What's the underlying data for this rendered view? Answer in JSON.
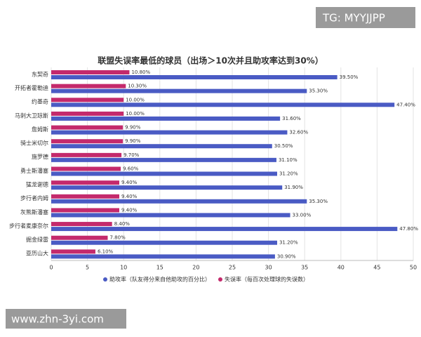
{
  "chart_data": {
    "type": "bar",
    "orientation": "horizontal",
    "title": "联盟失误率最低的球员（出场＞10次并且助攻率达到30%）",
    "categories": [
      "东契奇",
      "开拓者霍勒迪",
      "约基奇",
      "马刺大卫琼斯",
      "詹姆斯",
      "骑士米切尔",
      "施罗德",
      "勇士斯潘塞",
      "猛龙谢德",
      "步行者内姆",
      "灰熊斯潘塞",
      "步行者麦康奈尔",
      "掘金绿雷",
      "亚历山大"
    ],
    "series": [
      {
        "name": "助攻率（队友得分来自他助攻的百分比）",
        "color": "#4a5bc4",
        "values": [
          39.5,
          35.3,
          47.4,
          31.6,
          32.6,
          30.5,
          31.1,
          31.2,
          31.9,
          35.3,
          33.0,
          47.8,
          31.2,
          30.9
        ],
        "value_labels": [
          "39.50%",
          "35.30%",
          "47.40%",
          "31.60%",
          "32.60%",
          "30.50%",
          "31.10%",
          "31.20%",
          "31.90%",
          "35.30%",
          "33.00%",
          "47.80%",
          "31.20%",
          "30.90%"
        ]
      },
      {
        "name": "失误率（每百次处理球的失误数）",
        "color": "#c42a6c",
        "values": [
          10.8,
          10.3,
          10.0,
          10.0,
          9.9,
          9.9,
          9.7,
          9.6,
          9.4,
          9.4,
          9.4,
          8.4,
          7.8,
          6.1
        ],
        "value_labels": [
          "10.80%",
          "10.30%",
          "10.00%",
          "10.00%",
          "9.90%",
          "9.90%",
          "9.70%",
          "9.60%",
          "9.40%",
          "9.40%",
          "9.40%",
          "8.40%",
          "7.80%",
          "6.10%"
        ]
      }
    ],
    "xlim": [
      0,
      50
    ],
    "xticks": [
      0,
      5,
      10,
      15,
      20,
      25,
      30,
      35,
      40,
      45,
      50
    ],
    "grid": true,
    "legend": "bottom"
  },
  "watermarks": [
    "TG: MYYJJPP",
    "www.zhn-3yi.com"
  ]
}
